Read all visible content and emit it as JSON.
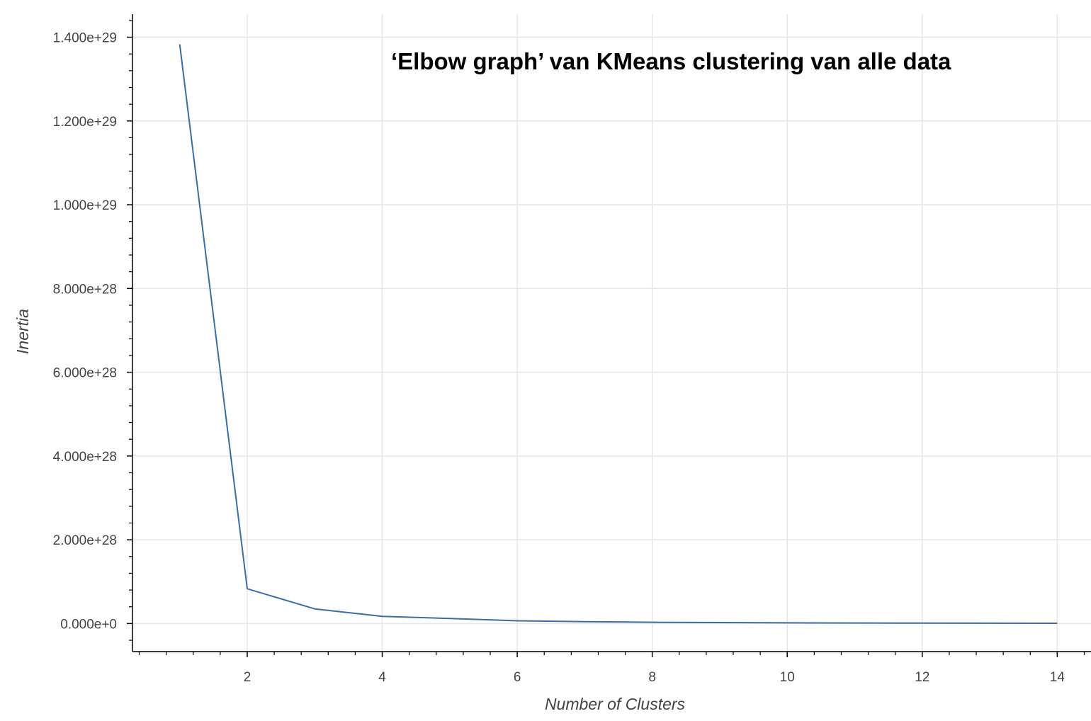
{
  "chart_data": {
    "type": "line",
    "title": "‘Elbow graph’ van KMeans clustering van alle data",
    "xlabel": "Number of Clusters",
    "ylabel": "Inertia",
    "x": [
      1,
      2,
      3,
      4,
      5,
      6,
      7,
      8,
      9,
      10,
      11,
      12,
      13,
      14
    ],
    "series": [
      {
        "values": [
          1.383e+29,
          8.3e+27,
          3.5e+27,
          1.7e+27,
          1.2e+27,
          6.5e+26,
          4.5e+26,
          3e+26,
          2.3e+26,
          1.7e+26,
          1.3e+26,
          1e+26,
          8e+25,
          6e+25
        ]
      }
    ],
    "xlim": [
      0.3,
      14.5
    ],
    "ylim": [
      -6.7e+27,
      1.455e+29
    ],
    "x_ticks": [
      2,
      4,
      6,
      8,
      10,
      12,
      14
    ],
    "x_tick_labels": [
      "2",
      "4",
      "6",
      "8",
      "10",
      "12",
      "14"
    ],
    "y_ticks": [
      0,
      2e+28,
      4e+28,
      6e+28,
      8e+28,
      1e+29,
      1.2e+29,
      1.4e+29
    ],
    "y_tick_labels": [
      "0.000e+0",
      "2.000e+28",
      "4.000e+28",
      "6.000e+28",
      "8.000e+28",
      "1.000e+29",
      "1.200e+29",
      "1.400e+29"
    ],
    "grid": true,
    "colors": {
      "line": "#3a6ea5",
      "grid": "#e6e6e6",
      "axis": "#000000",
      "text": "#444444"
    }
  }
}
